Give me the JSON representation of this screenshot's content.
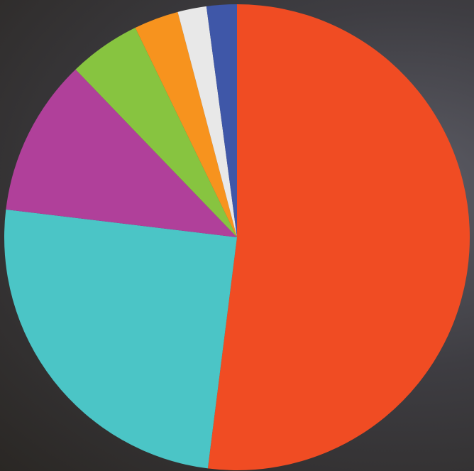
{
  "chart_data": {
    "type": "pie",
    "values": [
      52.0,
      24.9,
      10.9,
      5.0,
      3.1,
      2.0,
      2.1
    ],
    "colors": [
      "#f04c23",
      "#4bc5c6",
      "#b0409a",
      "#87c440",
      "#f7931e",
      "#e8e8e8",
      "#3f57a8"
    ],
    "start_angle": 0,
    "direction": "clockwise"
  }
}
